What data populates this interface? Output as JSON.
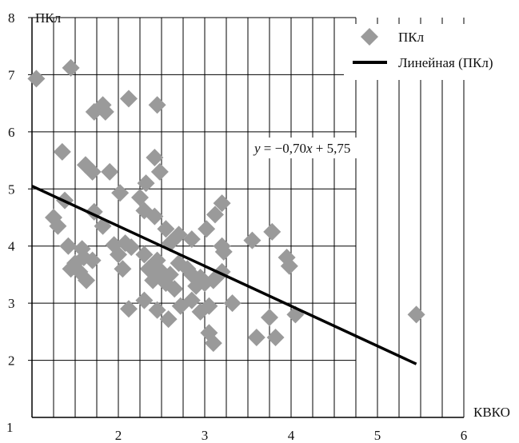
{
  "chart_data": {
    "type": "scatter",
    "title": "",
    "xlabel": "КВКО",
    "ylabel": "ПКл",
    "xlim": [
      1,
      6
    ],
    "ylim": [
      1,
      8
    ],
    "x_ticks": [
      "1",
      "2",
      "3",
      "4",
      "5",
      "6"
    ],
    "y_ticks": [
      "2",
      "3",
      "4",
      "5",
      "6",
      "7",
      "8"
    ],
    "grid": true,
    "legend_position": "top-right",
    "colors": {
      "points": "#9a9a9a",
      "trend": "#000000",
      "grid": "#000000"
    },
    "series": [
      {
        "name": "ПКл",
        "marker": "diamond",
        "points": [
          [
            1.05,
            6.93
          ],
          [
            1.45,
            7.12
          ],
          [
            1.72,
            6.35
          ],
          [
            1.82,
            6.47
          ],
          [
            1.85,
            6.35
          ],
          [
            2.12,
            6.58
          ],
          [
            2.45,
            6.47
          ],
          [
            1.35,
            5.65
          ],
          [
            1.62,
            5.42
          ],
          [
            1.7,
            5.3
          ],
          [
            1.9,
            5.3
          ],
          [
            2.02,
            4.93
          ],
          [
            2.32,
            5.1
          ],
          [
            2.42,
            5.55
          ],
          [
            2.48,
            5.3
          ],
          [
            1.38,
            4.8
          ],
          [
            1.25,
            4.5
          ],
          [
            1.3,
            4.35
          ],
          [
            1.72,
            4.6
          ],
          [
            1.82,
            4.35
          ],
          [
            2.25,
            4.85
          ],
          [
            2.3,
            4.62
          ],
          [
            2.42,
            4.52
          ],
          [
            2.55,
            4.3
          ],
          [
            2.6,
            4.05
          ],
          [
            2.7,
            4.2
          ],
          [
            2.85,
            4.12
          ],
          [
            3.02,
            4.3
          ],
          [
            3.12,
            4.55
          ],
          [
            3.2,
            4.75
          ],
          [
            1.42,
            4.0
          ],
          [
            1.58,
            3.95
          ],
          [
            1.6,
            3.8
          ],
          [
            1.5,
            3.7
          ],
          [
            1.55,
            3.55
          ],
          [
            1.63,
            3.4
          ],
          [
            1.7,
            3.75
          ],
          [
            1.45,
            3.6
          ],
          [
            1.95,
            4.02
          ],
          [
            2.0,
            3.85
          ],
          [
            2.08,
            4.05
          ],
          [
            2.15,
            3.98
          ],
          [
            2.05,
            3.6
          ],
          [
            2.3,
            3.85
          ],
          [
            2.35,
            3.6
          ],
          [
            2.4,
            3.4
          ],
          [
            2.45,
            3.75
          ],
          [
            2.5,
            3.55
          ],
          [
            2.55,
            3.35
          ],
          [
            2.6,
            3.5
          ],
          [
            2.65,
            3.25
          ],
          [
            2.7,
            3.7
          ],
          [
            2.8,
            3.6
          ],
          [
            2.85,
            3.5
          ],
          [
            2.9,
            3.3
          ],
          [
            2.95,
            3.45
          ],
          [
            3.0,
            3.35
          ],
          [
            3.1,
            3.4
          ],
          [
            3.2,
            3.55
          ],
          [
            3.2,
            4.0
          ],
          [
            3.22,
            3.9
          ],
          [
            3.55,
            4.1
          ],
          [
            3.78,
            4.25
          ],
          [
            3.95,
            3.8
          ],
          [
            3.98,
            3.65
          ],
          [
            2.12,
            2.9
          ],
          [
            2.3,
            3.05
          ],
          [
            2.45,
            2.88
          ],
          [
            2.58,
            2.72
          ],
          [
            2.72,
            2.95
          ],
          [
            2.85,
            3.05
          ],
          [
            2.95,
            2.85
          ],
          [
            3.05,
            2.95
          ],
          [
            3.05,
            2.48
          ],
          [
            3.1,
            2.3
          ],
          [
            3.32,
            3.0
          ],
          [
            3.6,
            2.4
          ],
          [
            3.75,
            2.75
          ],
          [
            3.82,
            2.4
          ],
          [
            4.05,
            2.8
          ],
          [
            5.45,
            2.8
          ]
        ]
      },
      {
        "name": "Линейная (ПКл)",
        "type": "line",
        "slope": -0.7,
        "intercept": 5.75,
        "x_range": [
          1,
          5.45
        ]
      }
    ],
    "annotations": [
      {
        "text": "y = −0,70x + 5,75",
        "near": "upper-right-of-center"
      }
    ]
  },
  "legend": {
    "items": [
      {
        "label": "ПКл",
        "marker": "diamond"
      },
      {
        "label": "Линейная (ПКл)",
        "marker": "line"
      }
    ]
  },
  "equation": {
    "y": "y",
    "eq": " = −0,70",
    "x": "x",
    "rest": " + 5,75"
  }
}
